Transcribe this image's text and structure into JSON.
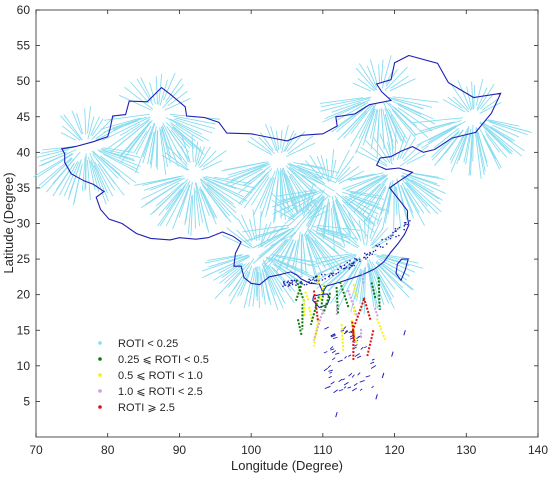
{
  "chart_data": {
    "type": "scatter",
    "title": "",
    "xlabel": "Longitude (Degree)",
    "ylabel": "Latitude (Degree)",
    "xlim": [
      70,
      140
    ],
    "ylim": [
      0,
      60
    ],
    "xticks": [
      70,
      80,
      90,
      100,
      110,
      120,
      130,
      140
    ],
    "yticks": [
      5,
      10,
      15,
      20,
      25,
      30,
      35,
      40,
      45,
      50,
      55,
      60
    ],
    "grid": false,
    "legend_position": "bottom-left",
    "boundary_color": "#1f1fb4",
    "series": [
      {
        "name": "ROTI < 0.25",
        "color": "#87dcf0",
        "marker": "dot"
      },
      {
        "name": "0.25 ⩽ ROTI < 0.5",
        "color": "#0a7a0a",
        "marker": "dot"
      },
      {
        "name": "0.5 ⩽ ROTI < 1.0",
        "color": "#f5f500",
        "marker": "dot"
      },
      {
        "name": "1.0 ⩽ ROTI < 2.5",
        "color": "#c8a0e6",
        "marker": "dot"
      },
      {
        "name": "ROTI ⩾ 2.5",
        "color": "#e01010",
        "marker": "dot"
      }
    ],
    "stations": [
      {
        "lon": 87,
        "lat": 45.5
      },
      {
        "lon": 77,
        "lat": 41
      },
      {
        "lon": 104,
        "lat": 39
      },
      {
        "lon": 92,
        "lat": 37
      },
      {
        "lon": 111,
        "lat": 35
      },
      {
        "lon": 120,
        "lat": 37.5
      },
      {
        "lon": 118,
        "lat": 48
      },
      {
        "lon": 131,
        "lat": 45
      },
      {
        "lon": 107,
        "lat": 30
      },
      {
        "lon": 101,
        "lat": 26
      },
      {
        "lon": 116,
        "lat": 26
      }
    ],
    "disturbed_region": {
      "lon": [
        106,
        118
      ],
      "lat": [
        14,
        24
      ]
    }
  }
}
